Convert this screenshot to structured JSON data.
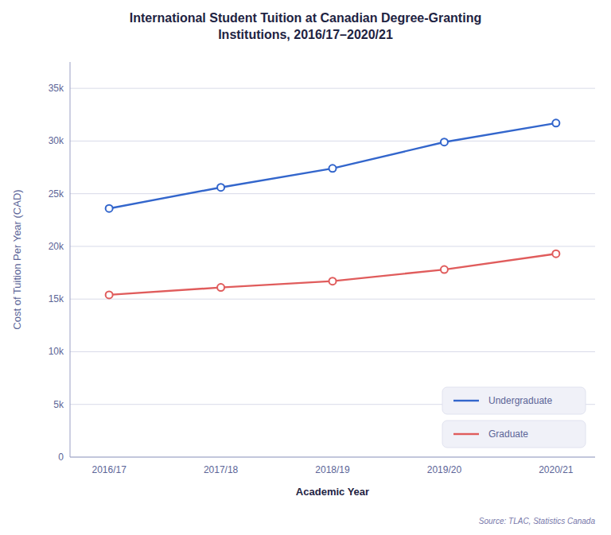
{
  "chart_data": {
    "type": "line",
    "title": "International Student Tuition at Canadian Degree-Granting\nInstitutions, 2016/17–2020/21",
    "x_label": "Academic Year",
    "y_label": "Cost of Tuition Per Year (CAD)",
    "categories": [
      "2016/17",
      "2017/18",
      "2018/19",
      "2019/20",
      "2020/21"
    ],
    "series": [
      {
        "name": "Undergraduate",
        "color": "#3366cc",
        "values": [
          23600,
          25600,
          27400,
          29900,
          31700
        ]
      },
      {
        "name": "Graduate",
        "color": "#e05c5c",
        "values": [
          15400,
          16100,
          16700,
          17800,
          19300
        ]
      }
    ],
    "ylim": [
      0,
      37500
    ],
    "yticks": [
      0,
      {
        "value": 5000,
        "label": "5k"
      },
      {
        "value": 10000,
        "label": "10k"
      },
      {
        "value": 15000,
        "label": "15k"
      },
      {
        "value": 20000,
        "label": "20k"
      },
      {
        "value": 25000,
        "label": "25k"
      },
      {
        "value": 30000,
        "label": "30k"
      },
      {
        "value": 35000,
        "label": "35k"
      }
    ],
    "grid": true,
    "legend": "lower right",
    "marker": "circle",
    "annotations": [
      "Source: TLAC, Statistics Canada"
    ]
  }
}
